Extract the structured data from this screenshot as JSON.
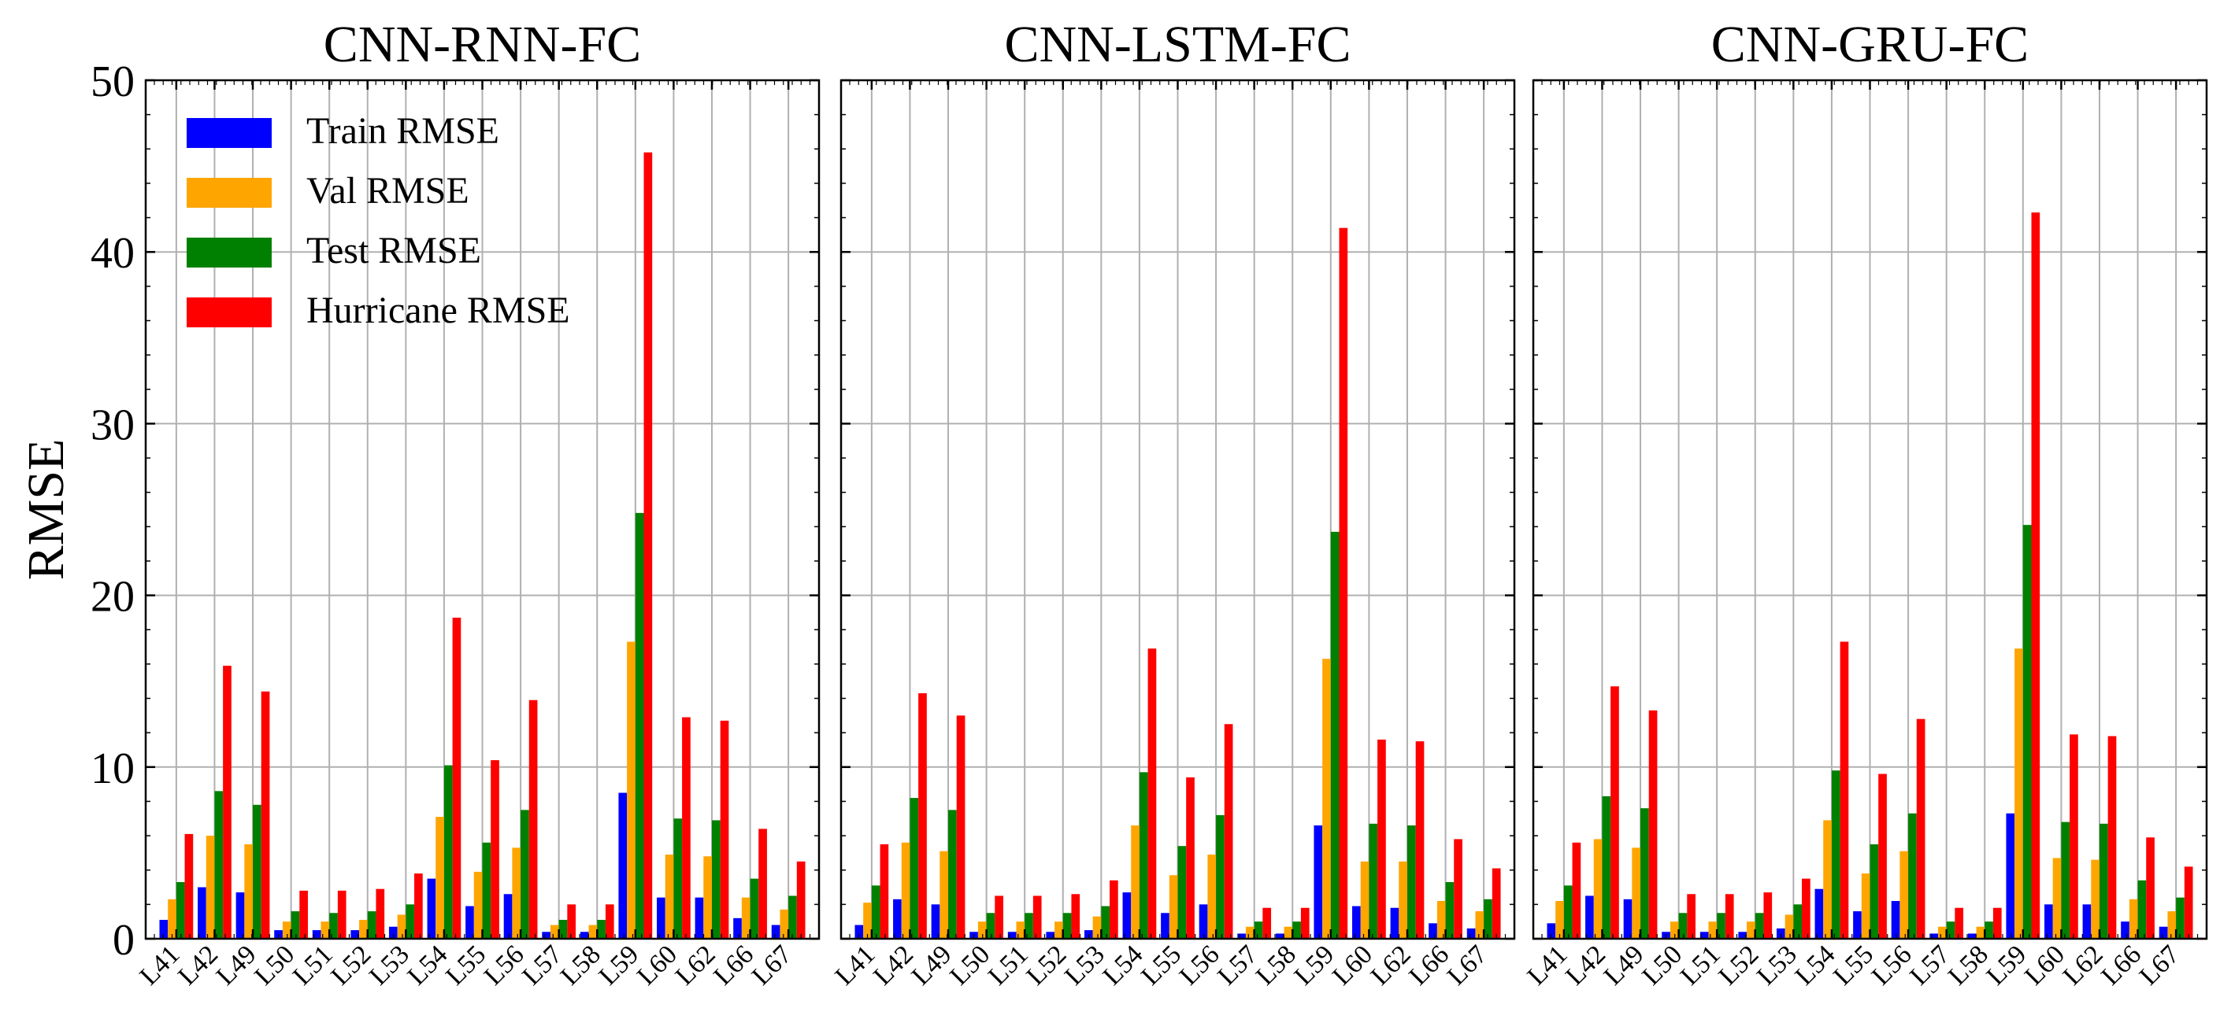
{
  "chart_data": {
    "type": "bar",
    "ylabel": "RMSE",
    "ylim": [
      0,
      50
    ],
    "yticks": [
      0,
      10,
      20,
      30,
      40,
      50
    ],
    "grid": true,
    "legend_position": "top-left (first panel)",
    "categories": [
      "L41",
      "L42",
      "L49",
      "L50",
      "L51",
      "L52",
      "L53",
      "L54",
      "L55",
      "L56",
      "L57",
      "L58",
      "L59",
      "L60",
      "L62",
      "L66",
      "L67"
    ],
    "series_legend": [
      {
        "name": "Train RMSE",
        "color": "#0000ff"
      },
      {
        "name": "Val RMSE",
        "color": "#ffa500"
      },
      {
        "name": "Test RMSE",
        "color": "#008000"
      },
      {
        "name": "Hurricane RMSE",
        "color": "#ff0000"
      }
    ],
    "panels": [
      {
        "title": "CNN-RNN-FC",
        "series": [
          {
            "name": "Train RMSE",
            "values": [
              1.1,
              3.0,
              2.7,
              0.5,
              0.5,
              0.5,
              0.7,
              3.5,
              1.9,
              2.6,
              0.4,
              0.4,
              8.5,
              2.4,
              2.4,
              1.2,
              0.8
            ]
          },
          {
            "name": "Val RMSE",
            "values": [
              2.3,
              6.0,
              5.5,
              1.0,
              1.0,
              1.1,
              1.4,
              7.1,
              3.9,
              5.3,
              0.8,
              0.8,
              17.3,
              4.9,
              4.8,
              2.4,
              1.7
            ]
          },
          {
            "name": "Test RMSE",
            "values": [
              3.3,
              8.6,
              7.8,
              1.6,
              1.5,
              1.6,
              2.0,
              10.1,
              5.6,
              7.5,
              1.1,
              1.1,
              24.8,
              7.0,
              6.9,
              3.5,
              2.5
            ]
          },
          {
            "name": "Hurricane RMSE",
            "values": [
              6.1,
              15.9,
              14.4,
              2.8,
              2.8,
              2.9,
              3.8,
              18.7,
              10.4,
              13.9,
              2.0,
              2.0,
              45.8,
              12.9,
              12.7,
              6.4,
              4.5
            ]
          }
        ]
      },
      {
        "title": "CNN-LSTM-FC",
        "series": [
          {
            "name": "Train RMSE",
            "values": [
              0.8,
              2.3,
              2.0,
              0.4,
              0.4,
              0.4,
              0.5,
              2.7,
              1.5,
              2.0,
              0.3,
              0.3,
              6.6,
              1.9,
              1.8,
              0.9,
              0.6
            ]
          },
          {
            "name": "Val RMSE",
            "values": [
              2.1,
              5.6,
              5.1,
              1.0,
              1.0,
              1.0,
              1.3,
              6.6,
              3.7,
              4.9,
              0.7,
              0.7,
              16.3,
              4.5,
              4.5,
              2.2,
              1.6
            ]
          },
          {
            "name": "Test RMSE",
            "values": [
              3.1,
              8.2,
              7.5,
              1.5,
              1.5,
              1.5,
              1.9,
              9.7,
              5.4,
              7.2,
              1.0,
              1.0,
              23.7,
              6.7,
              6.6,
              3.3,
              2.3
            ]
          },
          {
            "name": "Hurricane RMSE",
            "values": [
              5.5,
              14.3,
              13.0,
              2.5,
              2.5,
              2.6,
              3.4,
              16.9,
              9.4,
              12.5,
              1.8,
              1.8,
              41.4,
              11.6,
              11.5,
              5.8,
              4.1
            ]
          }
        ]
      },
      {
        "title": "CNN-GRU-FC",
        "series": [
          {
            "name": "Train RMSE",
            "values": [
              0.9,
              2.5,
              2.3,
              0.4,
              0.4,
              0.4,
              0.6,
              2.9,
              1.6,
              2.2,
              0.3,
              0.3,
              7.3,
              2.0,
              2.0,
              1.0,
              0.7
            ]
          },
          {
            "name": "Val RMSE",
            "values": [
              2.2,
              5.8,
              5.3,
              1.0,
              1.0,
              1.0,
              1.4,
              6.9,
              3.8,
              5.1,
              0.7,
              0.7,
              16.9,
              4.7,
              4.6,
              2.3,
              1.6
            ]
          },
          {
            "name": "Test RMSE",
            "values": [
              3.1,
              8.3,
              7.6,
              1.5,
              1.5,
              1.5,
              2.0,
              9.8,
              5.5,
              7.3,
              1.0,
              1.0,
              24.1,
              6.8,
              6.7,
              3.4,
              2.4
            ]
          },
          {
            "name": "Hurricane RMSE",
            "values": [
              5.6,
              14.7,
              13.3,
              2.6,
              2.6,
              2.7,
              3.5,
              17.3,
              9.6,
              12.8,
              1.8,
              1.8,
              42.3,
              11.9,
              11.8,
              5.9,
              4.2
            ]
          }
        ]
      }
    ]
  }
}
